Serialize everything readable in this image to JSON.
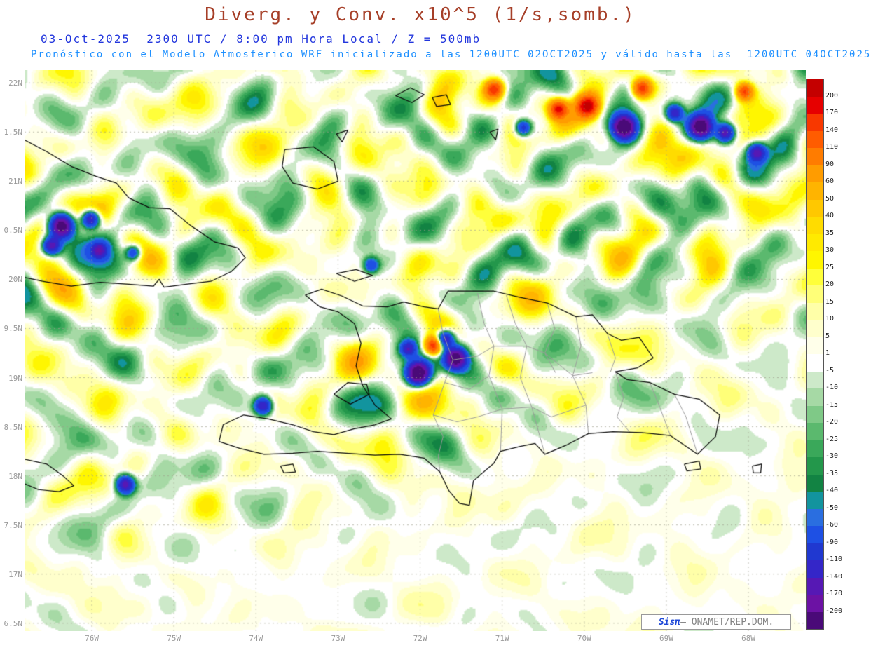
{
  "header": {
    "title": "Diverg. y Conv. x10^5 (1/s,somb.)",
    "title_color": "#a63f28",
    "datetime_line": "03-Oct-2025  2300 UTC / 8:00 pm Hora Local / Z = 500mb",
    "datetime_color": "#2236dd",
    "model_line": "Pronóstico con el Modelo Atmosferico WRF inicializado a las 1200UTC_02OCT2025 y válido hasta las  1200UTC_04OCT2025",
    "model_color": "#1e90ff"
  },
  "map": {
    "lat_tick_labels": [
      "22N",
      "1.5N",
      "21N",
      "0.5N",
      "20N",
      "9.5N",
      "19N",
      "8.5N",
      "18N",
      "7.5N",
      "17N",
      "6.5N"
    ],
    "lon_tick_labels": [
      "76W",
      "75W",
      "74W",
      "73W",
      "72W",
      "71W",
      "70W",
      "69W",
      "68W"
    ],
    "tick_color": "#9a9a9a"
  },
  "colorbar": {
    "labels_top_to_bottom": [
      "200",
      "170",
      "140",
      "110",
      "90",
      "60",
      "50",
      "40",
      "35",
      "30",
      "25",
      "20",
      "15",
      "10",
      "5",
      "1",
      "-5",
      "-10",
      "-15",
      "-20",
      "-25",
      "-30",
      "-35",
      "-40",
      "-50",
      "-60",
      "-90",
      "-110",
      "-140",
      "-170",
      "-200"
    ],
    "colors_top_to_bottom": [
      "#c40000",
      "#e60000",
      "#f83800",
      "#ff5c00",
      "#ff7c00",
      "#ff9c00",
      "#ffb400",
      "#ffc800",
      "#ffdc00",
      "#ffea00",
      "#fff600",
      "#ffff3a",
      "#ffff78",
      "#ffffa8",
      "#ffffcc",
      "#ffffea",
      "#ffffff",
      "#cde9c9",
      "#a6d9a5",
      "#7fc987",
      "#5bb96e",
      "#3aa85a",
      "#23974b",
      "#128343",
      "#12949e",
      "#2a6ee0",
      "#1e50e4",
      "#2038d0",
      "#3426c8",
      "#5618b4",
      "#6c12a4",
      "#4a0a78"
    ]
  },
  "attribution": {
    "brand": "Sisπ",
    "text": "– ONAMET/REP.DOM.",
    "brand_color": "#1f49d8",
    "text_color": "#808080"
  },
  "chart_data": {
    "type": "heatmap",
    "title": "Diverg. y Conv. x10^5 (1/s,somb.)",
    "units": "x10^5 1/s",
    "level": "500mb",
    "valid_time": "03-Oct-2025 2300 UTC / 8:00 pm Hora Local",
    "model": "WRF",
    "initialized": "1200UTC_02OCT2025",
    "valid_until": "1200UTC_04OCT2025",
    "extent": {
      "lon_west": "76.8W",
      "lon_east": "67.3W",
      "lat_south": "16.4N",
      "lat_north": "22.1N"
    },
    "contour_levels": [
      -200,
      -170,
      -140,
      -110,
      -90,
      -60,
      -50,
      -40,
      -35,
      -30,
      -25,
      -20,
      -15,
      -10,
      -5,
      1,
      5,
      10,
      15,
      20,
      25,
      30,
      35,
      40,
      50,
      60,
      90,
      110,
      140,
      170,
      200
    ],
    "hotspots": [
      {
        "lon": -76.38,
        "lat": 20.55,
        "value": -240
      },
      {
        "lon": -76.5,
        "lat": 20.35,
        "value": -160
      },
      {
        "lon": -76.02,
        "lat": 20.62,
        "value": -180
      },
      {
        "lon": -75.92,
        "lat": 20.3,
        "value": -120
      },
      {
        "lon": -75.5,
        "lat": 20.28,
        "value": -110
      },
      {
        "lon": -72.03,
        "lat": 19.05,
        "value": -260
      },
      {
        "lon": -71.57,
        "lat": 19.2,
        "value": -240
      },
      {
        "lon": -71.7,
        "lat": 19.4,
        "value": -160
      },
      {
        "lon": -71.84,
        "lat": 19.33,
        "value": 170
      },
      {
        "lon": -72.15,
        "lat": 19.3,
        "value": -120
      },
      {
        "lon": -73.92,
        "lat": 18.72,
        "value": -160
      },
      {
        "lon": -75.6,
        "lat": 17.92,
        "value": -170
      },
      {
        "lon": -69.96,
        "lat": 21.77,
        "value": 200
      },
      {
        "lon": -69.52,
        "lat": 21.56,
        "value": -250
      },
      {
        "lon": -68.58,
        "lat": 21.56,
        "value": -230
      },
      {
        "lon": -68.28,
        "lat": 21.5,
        "value": -170
      },
      {
        "lon": -70.32,
        "lat": 21.74,
        "value": 160
      },
      {
        "lon": -71.1,
        "lat": 21.94,
        "value": 150
      },
      {
        "lon": -69.3,
        "lat": 21.95,
        "value": 150
      },
      {
        "lon": -68.9,
        "lat": 21.7,
        "value": -130
      },
      {
        "lon": -67.9,
        "lat": 21.3,
        "value": -150
      },
      {
        "lon": -68.05,
        "lat": 21.92,
        "value": 130
      },
      {
        "lon": -70.75,
        "lat": 21.55,
        "value": -120
      },
      {
        "lon": -72.6,
        "lat": 20.15,
        "value": -90
      }
    ]
  }
}
